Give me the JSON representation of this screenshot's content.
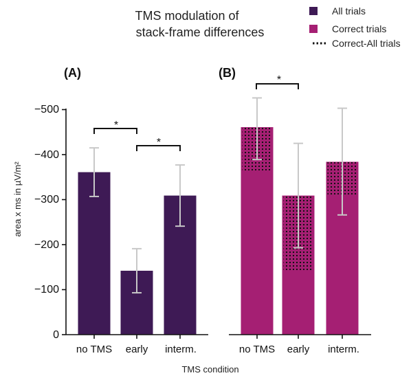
{
  "colors": {
    "all_trials": "#3e1a55",
    "correct_trials": "#a51f73",
    "error_bar": "#c8c8c8",
    "axis": "#111111",
    "dots": "#111111"
  },
  "title_lines": [
    "TMS modulation of",
    "stack-frame differences"
  ],
  "legend": {
    "items": [
      {
        "label": "All trials",
        "swatch": "all_trials"
      },
      {
        "label": "Correct trials",
        "swatch": "correct_trials"
      },
      {
        "label": "Correct-All trials",
        "swatch": "dotted"
      }
    ]
  },
  "xlabel": "TMS condition",
  "ylabel": "area x ms in  µV/m²",
  "chart_data": [
    {
      "type": "bar",
      "panel_label": "(A)",
      "categories": [
        "no TMS",
        "early",
        "interm."
      ],
      "series": [
        {
          "name": "All trials",
          "values": [
            -361,
            -142,
            -309
          ],
          "error_low": [
            -307,
            -93,
            -241
          ],
          "error_high": [
            -415,
            -191,
            -377
          ]
        }
      ],
      "yticks": [
        "−500",
        "−400",
        "−300",
        "−200",
        "−100",
        "0"
      ],
      "ylim": [
        0,
        -500
      ],
      "significance": [
        {
          "from": "no TMS",
          "to": "early",
          "label": "*"
        },
        {
          "from": "early",
          "to": "interm.",
          "label": "*"
        }
      ]
    },
    {
      "type": "bar",
      "panel_label": "(B)",
      "categories": [
        "no TMS",
        "early",
        "interm."
      ],
      "series": [
        {
          "name": "Correct trials",
          "values": [
            -461,
            -309,
            -384
          ],
          "error_low": [
            -389,
            -193,
            -266
          ],
          "error_high": [
            -526,
            -425,
            -503
          ]
        },
        {
          "name": "Correct-All trials",
          "from": [
            -361,
            -142,
            -309
          ],
          "to": [
            -461,
            -309,
            -384
          ]
        }
      ],
      "ylim": [
        0,
        -500
      ],
      "significance": [
        {
          "from": "no TMS",
          "to": "early",
          "label": "*"
        }
      ]
    }
  ]
}
